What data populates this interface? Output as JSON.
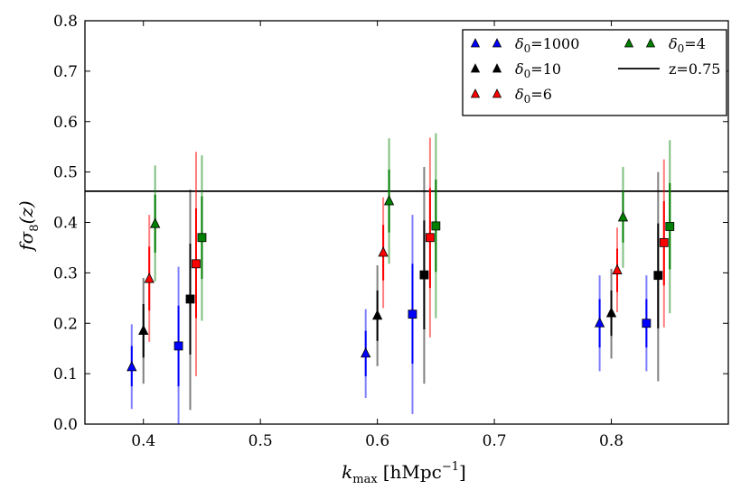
{
  "chart_data": {
    "type": "scatter",
    "title": "",
    "xlabel_main": "k",
    "xlabel_sub": "max",
    "xlabel_unit": "[hMpc",
    "xlabel_exp": "−1",
    "xlabel_close": "]",
    "ylabel_main": "fσ",
    "ylabel_sub": "8",
    "ylabel_arg": "(z)",
    "xlim": [
      0.35,
      0.9
    ],
    "ylim": [
      0.0,
      0.8
    ],
    "xticks": [
      0.4,
      0.5,
      0.6,
      0.7,
      0.8
    ],
    "xtick_labels": [
      "0.4",
      "0.5",
      "0.6",
      "0.7",
      "0.8"
    ],
    "yticks": [
      0.0,
      0.1,
      0.2,
      0.3,
      0.4,
      0.5,
      0.6,
      0.7,
      0.8
    ],
    "ytick_labels": [
      "0.0",
      "0.1",
      "0.2",
      "0.3",
      "0.4",
      "0.5",
      "0.6",
      "0.7",
      "0.8"
    ],
    "reference_line": {
      "y": 0.462,
      "label": "z=0.75",
      "color": "#000000"
    },
    "series": [
      {
        "name": "δ0=1000",
        "label_sym": "δ",
        "label_sub": "0",
        "label_val": "=1000",
        "color": "#0000ff",
        "points": [
          {
            "x": 0.39,
            "y": 0.113,
            "inner": [
              0.075,
              0.155
            ],
            "outer": [
              0.03,
              0.198
            ],
            "marker": "triangle"
          },
          {
            "x": 0.43,
            "y": 0.155,
            "inner": [
              0.075,
              0.235
            ],
            "outer": [
              0.0,
              0.312
            ],
            "marker": "square"
          },
          {
            "x": 0.59,
            "y": 0.14,
            "inner": [
              0.095,
              0.185
            ],
            "outer": [
              0.052,
              0.228
            ],
            "marker": "triangle"
          },
          {
            "x": 0.63,
            "y": 0.218,
            "inner": [
              0.12,
              0.318
            ],
            "outer": [
              0.02,
              0.415
            ],
            "marker": "square"
          },
          {
            "x": 0.79,
            "y": 0.2,
            "inner": [
              0.152,
              0.248
            ],
            "outer": [
              0.105,
              0.295
            ],
            "marker": "triangle"
          },
          {
            "x": 0.83,
            "y": 0.2,
            "inner": [
              0.152,
              0.248
            ],
            "outer": [
              0.105,
              0.295
            ],
            "marker": "square"
          }
        ]
      },
      {
        "name": "δ0=10",
        "label_sym": "δ",
        "label_sub": "0",
        "label_val": "=10",
        "color": "#000000",
        "points": [
          {
            "x": 0.4,
            "y": 0.185,
            "inner": [
              0.132,
              0.238
            ],
            "outer": [
              0.08,
              0.29
            ],
            "marker": "triangle"
          },
          {
            "x": 0.44,
            "y": 0.248,
            "inner": [
              0.138,
              0.358
            ],
            "outer": [
              0.028,
              0.465
            ],
            "marker": "square"
          },
          {
            "x": 0.6,
            "y": 0.215,
            "inner": [
              0.165,
              0.265
            ],
            "outer": [
              0.115,
              0.315
            ],
            "marker": "triangle"
          },
          {
            "x": 0.64,
            "y": 0.296,
            "inner": [
              0.188,
              0.404
            ],
            "outer": [
              0.08,
              0.51
            ],
            "marker": "square"
          },
          {
            "x": 0.8,
            "y": 0.22,
            "inner": [
              0.175,
              0.265
            ],
            "outer": [
              0.13,
              0.308
            ],
            "marker": "triangle"
          },
          {
            "x": 0.84,
            "y": 0.295,
            "inner": [
              0.19,
              0.398
            ],
            "outer": [
              0.085,
              0.5
            ],
            "marker": "square"
          }
        ]
      },
      {
        "name": "δ0=6",
        "label_sym": "δ",
        "label_sub": "0",
        "label_val": "=6",
        "color": "#ff0000",
        "points": [
          {
            "x": 0.405,
            "y": 0.288,
            "inner": [
              0.225,
              0.352
            ],
            "outer": [
              0.163,
              0.415
            ],
            "marker": "triangle"
          },
          {
            "x": 0.445,
            "y": 0.318,
            "inner": [
              0.21,
              0.428
            ],
            "outer": [
              0.095,
              0.54
            ],
            "marker": "square"
          },
          {
            "x": 0.605,
            "y": 0.34,
            "inner": [
              0.285,
              0.395
            ],
            "outer": [
              0.23,
              0.45
            ],
            "marker": "triangle"
          },
          {
            "x": 0.645,
            "y": 0.37,
            "inner": [
              0.27,
              0.468
            ],
            "outer": [
              0.172,
              0.568
            ],
            "marker": "square"
          },
          {
            "x": 0.805,
            "y": 0.305,
            "inner": [
              0.262,
              0.348
            ],
            "outer": [
              0.222,
              0.39
            ],
            "marker": "triangle"
          },
          {
            "x": 0.845,
            "y": 0.36,
            "inner": [
              0.275,
              0.442
            ],
            "outer": [
              0.192,
              0.525
            ],
            "marker": "square"
          }
        ]
      },
      {
        "name": "δ0=4",
        "label_sym": "δ",
        "label_sub": "0",
        "label_val": "=4",
        "color": "#008000",
        "points": [
          {
            "x": 0.41,
            "y": 0.397,
            "inner": [
              0.34,
              0.455
            ],
            "outer": [
              0.283,
              0.513
            ],
            "marker": "triangle"
          },
          {
            "x": 0.45,
            "y": 0.37,
            "inner": [
              0.288,
              0.452
            ],
            "outer": [
              0.205,
              0.533
            ],
            "marker": "square"
          },
          {
            "x": 0.61,
            "y": 0.442,
            "inner": [
              0.38,
              0.505
            ],
            "outer": [
              0.318,
              0.567
            ],
            "marker": "triangle"
          },
          {
            "x": 0.65,
            "y": 0.393,
            "inner": [
              0.302,
              0.485
            ],
            "outer": [
              0.21,
              0.577
            ],
            "marker": "square"
          },
          {
            "x": 0.81,
            "y": 0.41,
            "inner": [
              0.36,
              0.46
            ],
            "outer": [
              0.31,
              0.51
            ],
            "marker": "triangle"
          },
          {
            "x": 0.85,
            "y": 0.392,
            "inner": [
              0.307,
              0.478
            ],
            "outer": [
              0.22,
              0.563
            ],
            "marker": "square"
          }
        ]
      }
    ],
    "legend": {
      "position": "top-right",
      "columns": 2
    }
  }
}
